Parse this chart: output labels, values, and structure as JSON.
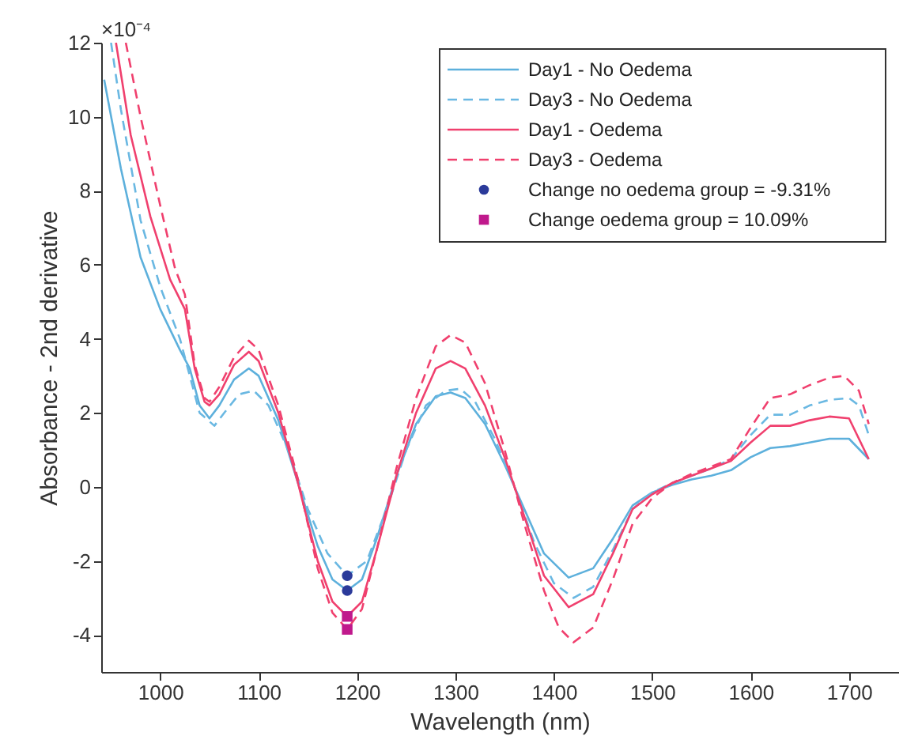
{
  "chart_data": {
    "type": "line",
    "xlabel": "Wavelength (nm)",
    "ylabel": "Absorbance - 2nd derivative",
    "annotations": [
      "×10⁻⁴"
    ],
    "xlim": [
      940,
      1750
    ],
    "xticks": [
      1000,
      1100,
      1200,
      1300,
      1400,
      1500,
      1600,
      1700
    ],
    "ylim": [
      -5,
      12
    ],
    "yticks": [
      -4,
      -2,
      0,
      2,
      4,
      6,
      8,
      10,
      12
    ],
    "grid": false,
    "legend": "top right",
    "series": [
      {
        "name": "Day1 - No Oedema",
        "color": "#5db0dc",
        "line_style": "solid",
        "marker": "none",
        "x": [
          943,
          960,
          980,
          1000,
          1020,
          1030,
          1040,
          1050,
          1060,
          1075,
          1090,
          1100,
          1120,
          1140,
          1160,
          1175,
          1190,
          1205,
          1220,
          1240,
          1260,
          1280,
          1295,
          1310,
          1330,
          1350,
          1370,
          1390,
          1415,
          1440,
          1460,
          1480,
          1500,
          1520,
          1540,
          1560,
          1580,
          1600,
          1620,
          1640,
          1660,
          1680,
          1700,
          1720
        ],
        "values": [
          11,
          8.6,
          6.2,
          4.8,
          3.7,
          3.2,
          2.2,
          1.85,
          2.2,
          2.9,
          3.2,
          3.0,
          1.8,
          0.1,
          -1.6,
          -2.5,
          -2.8,
          -2.5,
          -1.4,
          0.3,
          1.7,
          2.45,
          2.55,
          2.4,
          1.7,
          0.6,
          -0.6,
          -1.8,
          -2.45,
          -2.2,
          -1.4,
          -0.5,
          -0.15,
          0.05,
          0.2,
          0.3,
          0.45,
          0.8,
          1.05,
          1.1,
          1.2,
          1.3,
          1.3,
          0.75
        ]
      },
      {
        "name": "Day3 - No Oedema",
        "color": "#6ab8e2",
        "line_style": "dashed",
        "marker": "none",
        "x": [
          950,
          960,
          980,
          1000,
          1020,
          1030,
          1040,
          1055,
          1065,
          1080,
          1095,
          1110,
          1130,
          1150,
          1170,
          1190,
          1210,
          1230,
          1250,
          1270,
          1290,
          1305,
          1320,
          1340,
          1360,
          1380,
          1400,
          1420,
          1440,
          1460,
          1480,
          1500,
          1520,
          1540,
          1560,
          1580,
          1600,
          1620,
          1640,
          1660,
          1680,
          1700,
          1710,
          1720
        ],
        "values": [
          12,
          10.2,
          7.2,
          5.4,
          4.0,
          3.0,
          2.0,
          1.65,
          2.0,
          2.5,
          2.6,
          2.2,
          1.0,
          -0.6,
          -1.8,
          -2.4,
          -2.0,
          -0.6,
          1.0,
          2.2,
          2.6,
          2.65,
          2.3,
          1.3,
          0.0,
          -1.5,
          -2.6,
          -3.0,
          -2.7,
          -1.7,
          -0.6,
          -0.15,
          0.1,
          0.3,
          0.5,
          0.75,
          1.4,
          1.95,
          1.95,
          2.2,
          2.35,
          2.4,
          2.2,
          1.4
        ]
      },
      {
        "name": "Day1 - Oedema",
        "color": "#f0406e",
        "line_style": "solid",
        "marker": "none",
        "x": [
          955,
          970,
          990,
          1010,
          1025,
          1035,
          1045,
          1050,
          1060,
          1075,
          1090,
          1100,
          1120,
          1140,
          1160,
          1175,
          1190,
          1205,
          1220,
          1240,
          1260,
          1280,
          1295,
          1310,
          1330,
          1350,
          1370,
          1390,
          1415,
          1440,
          1460,
          1480,
          1500,
          1520,
          1540,
          1560,
          1580,
          1600,
          1620,
          1640,
          1660,
          1680,
          1700,
          1720
        ],
        "values": [
          12,
          9.5,
          7.3,
          5.6,
          4.8,
          3.2,
          2.3,
          2.2,
          2.5,
          3.3,
          3.65,
          3.4,
          2.0,
          0.1,
          -2.0,
          -3.1,
          -3.5,
          -3.1,
          -1.7,
          0.3,
          2.0,
          3.2,
          3.4,
          3.2,
          2.2,
          0.8,
          -0.8,
          -2.4,
          -3.25,
          -2.9,
          -1.8,
          -0.6,
          -0.2,
          0.1,
          0.3,
          0.5,
          0.7,
          1.2,
          1.65,
          1.65,
          1.8,
          1.9,
          1.85,
          0.75
        ]
      },
      {
        "name": "Day3 - Oedema",
        "color": "#f0406e",
        "line_style": "dashed",
        "marker": "none",
        "x": [
          965,
          980,
          1000,
          1015,
          1025,
          1035,
          1045,
          1050,
          1060,
          1075,
          1090,
          1100,
          1120,
          1140,
          1160,
          1175,
          1190,
          1205,
          1220,
          1240,
          1260,
          1280,
          1295,
          1310,
          1330,
          1350,
          1370,
          1390,
          1405,
          1420,
          1440,
          1460,
          1480,
          1500,
          1520,
          1540,
          1560,
          1580,
          1600,
          1620,
          1640,
          1660,
          1680,
          1695,
          1710,
          1720
        ],
        "values": [
          12,
          10,
          7.6,
          5.9,
          5.2,
          3.3,
          2.4,
          2.3,
          2.7,
          3.5,
          3.95,
          3.7,
          2.2,
          0.2,
          -2.2,
          -3.4,
          -3.85,
          -3.3,
          -1.7,
          0.5,
          2.4,
          3.8,
          4.1,
          3.9,
          2.8,
          1.0,
          -1.0,
          -2.8,
          -3.8,
          -4.2,
          -3.8,
          -2.5,
          -1.0,
          -0.3,
          0.1,
          0.35,
          0.55,
          0.75,
          1.6,
          2.4,
          2.5,
          2.75,
          2.95,
          3.0,
          2.6,
          1.7
        ]
      },
      {
        "name": "Change no oedema group = -9.31%",
        "type": "scatter",
        "color": "#2b3a9a",
        "marker": "circle",
        "x": [
          1190,
          1190
        ],
        "values": [
          -2.4,
          -2.8
        ]
      },
      {
        "name": "Change oedema group = 10.09%",
        "type": "scatter",
        "color": "#c0198c",
        "marker": "square",
        "x": [
          1190,
          1190
        ],
        "values": [
          -3.5,
          -3.85
        ]
      }
    ]
  }
}
